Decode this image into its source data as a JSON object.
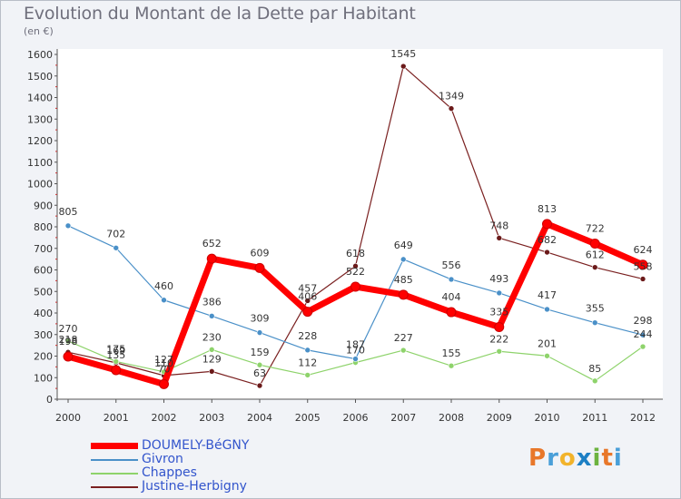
{
  "header": {
    "title": "Evolution du Montant de la Dette par Habitant",
    "unit": "(en €)"
  },
  "logo": {
    "letters": [
      "P",
      "r",
      "o",
      "x",
      "i",
      "t",
      "i"
    ],
    "colors": [
      "#e8772a",
      "#4a9fd8",
      "#f2b32b",
      "#1d7fc4",
      "#6cb33f",
      "#e8772a",
      "#4a9fd8"
    ]
  },
  "chart_data": {
    "type": "line",
    "title": "Evolution du Montant de la Dette par Habitant",
    "ylabel": "(en €)",
    "xlabel": "",
    "x": [
      "2000",
      "2001",
      "2002",
      "2003",
      "2004",
      "2005",
      "2006",
      "2007",
      "2008",
      "2009",
      "2010",
      "2011",
      "2012"
    ],
    "ylim": [
      0,
      1600
    ],
    "yticks": [
      0,
      100,
      200,
      300,
      400,
      500,
      600,
      700,
      800,
      900,
      1000,
      1100,
      1200,
      1300,
      1400,
      1500,
      1600
    ],
    "grid": false,
    "legend_position": "bottom-left",
    "series": [
      {
        "name": "DOUMELY-BéGNY",
        "color": "#ff0000",
        "values": [
          198,
          135,
          70,
          652,
          609,
          406,
          522,
          485,
          404,
          335,
          813,
          722,
          624
        ],
        "labels": [
          "198",
          "135",
          "70",
          "652",
          "609",
          "406",
          "522",
          "485",
          "404",
          "335",
          "813",
          "722",
          "624"
        ]
      },
      {
        "name": "Givron",
        "color": "#4a90c8",
        "values": [
          805,
          702,
          460,
          386,
          309,
          228,
          187,
          649,
          556,
          493,
          417,
          355,
          298
        ],
        "labels": [
          "805",
          "702",
          "460",
          "386",
          "309",
          "228",
          "187",
          "649",
          "556",
          "493",
          "417",
          "355",
          "298"
        ]
      },
      {
        "name": "Chappes",
        "color": "#8ed36b",
        "values": [
          270,
          175,
          127,
          230,
          159,
          112,
          170,
          227,
          155,
          222,
          201,
          85,
          244
        ],
        "labels": [
          "270",
          "175",
          "127",
          "230",
          "159",
          "112",
          "170",
          "227",
          "155",
          "222",
          "201",
          "85",
          "244"
        ]
      },
      {
        "name": "Justine-Herbigny",
        "color": "#7a2020",
        "values": [
          218,
          169,
          110,
          129,
          63,
          457,
          618,
          1545,
          1349,
          748,
          682,
          612,
          558
        ],
        "labels": [
          "218",
          "169",
          "110",
          "129",
          "63",
          "457",
          "618",
          "1545",
          "1349",
          "748",
          "682",
          "612",
          "558"
        ]
      }
    ]
  }
}
